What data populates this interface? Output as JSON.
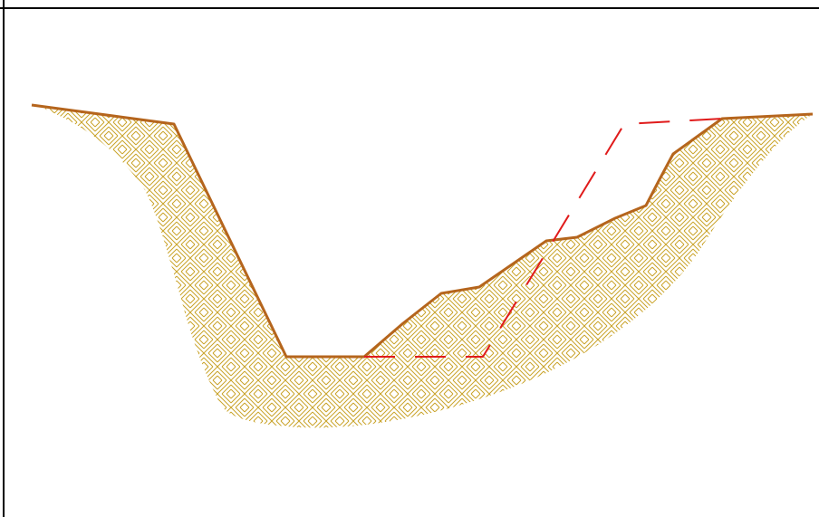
{
  "diagram": {
    "type": "channel-cross-section",
    "colors": {
      "background": "#ffffff",
      "frame": "#000000",
      "ground_line": "#b5651d",
      "hatch": "#c9a227",
      "design_line": "#e01b1b"
    },
    "elements": [
      {
        "name": "existing-ground-profile",
        "style": "solid"
      },
      {
        "name": "proposed-excavation-line",
        "style": "dashed"
      },
      {
        "name": "soil-hatch-area",
        "style": "herringbone-hatch"
      }
    ]
  }
}
